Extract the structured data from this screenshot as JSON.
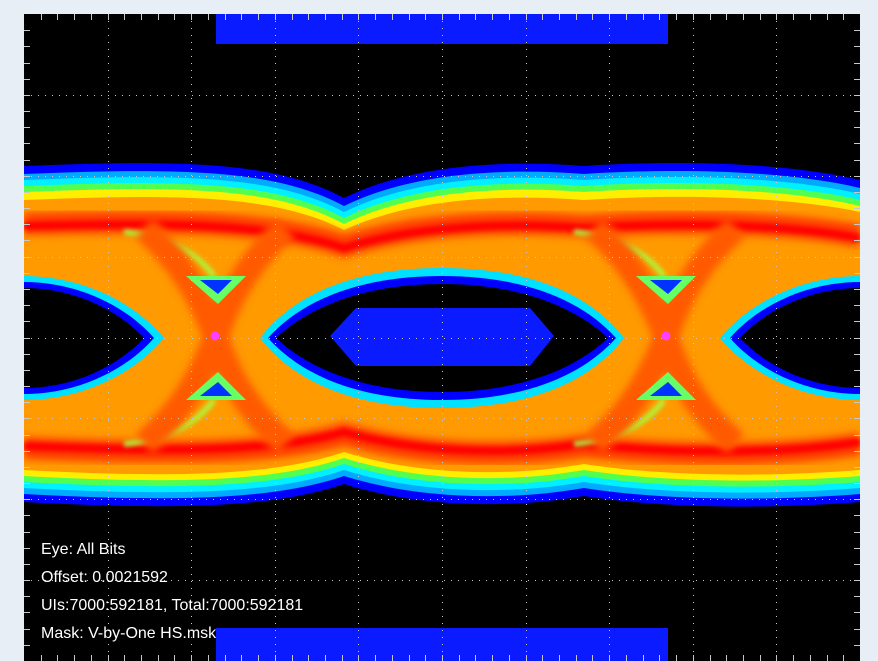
{
  "eye_diagram": {
    "info": {
      "eye_label": "Eye: All Bits",
      "offset_label": "Offset: 0.0021592",
      "counts_label": "UIs:7000:592181, Total:7000:592181",
      "mask_label": "Mask: V-by-One HS.msk"
    },
    "grid": {
      "on": true,
      "divisions_x": 10,
      "divisions_y": 8,
      "style": "dotted"
    },
    "colors": {
      "background": "#000000",
      "mask": "#0a1cff",
      "grid": "#c8c8c8",
      "crossing_marker": "#ff40ff",
      "density_scale": [
        "#0000ff",
        "#00a0ff",
        "#00ffff",
        "#40ff60",
        "#ffff00",
        "#ffa000",
        "#ff4000",
        "#ff0000"
      ]
    }
  }
}
